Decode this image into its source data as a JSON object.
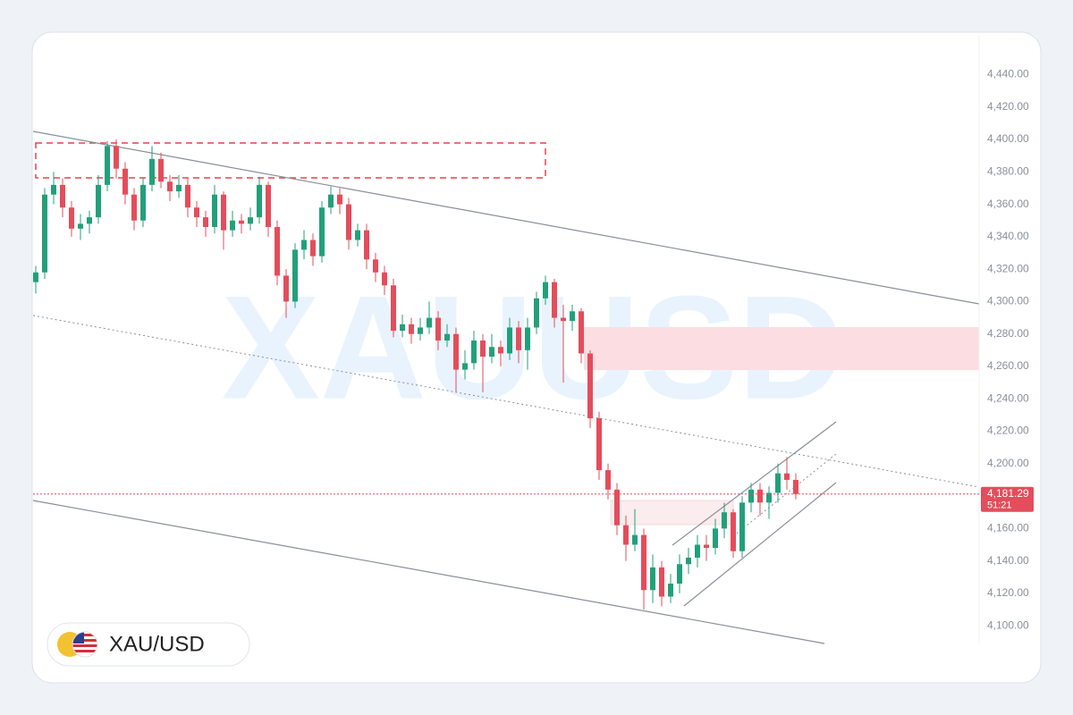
{
  "chart_data": {
    "type": "candlestick",
    "watermark": "XAUUSD",
    "symbol": "XAU/USD",
    "price_label": "4,181.29",
    "countdown": "51:21",
    "up_color": "#22a07a",
    "down_color": "#e44d5b",
    "grid": false,
    "ylim": [
      4067,
      4464
    ],
    "yticks": [
      {
        "value": 4100,
        "label": "4,100.00"
      },
      {
        "value": 4120,
        "label": "4,120.00"
      },
      {
        "value": 4140,
        "label": "4,140.00"
      },
      {
        "value": 4160,
        "label": "4,160.00"
      },
      {
        "value": 4180,
        "label": "4,180.00"
      },
      {
        "value": 4200,
        "label": "4,200.00"
      },
      {
        "value": 4220,
        "label": "4,220.00"
      },
      {
        "value": 4240,
        "label": "4,240.00"
      },
      {
        "value": 4260,
        "label": "4,260.00"
      },
      {
        "value": 4280,
        "label": "4,280.00"
      },
      {
        "value": 4300,
        "label": "4,300.00"
      },
      {
        "value": 4320,
        "label": "4,320.00"
      },
      {
        "value": 4340,
        "label": "4,340.00"
      },
      {
        "value": 4360,
        "label": "4,360.00"
      },
      {
        "value": 4380,
        "label": "4,380.00"
      },
      {
        "value": 4400,
        "label": "4,400.00"
      },
      {
        "value": 4420,
        "label": "4,420.00"
      },
      {
        "value": 4440,
        "label": "4,440.00"
      }
    ],
    "open": [
      4312,
      4318,
      4366,
      4372,
      4358,
      4345,
      4348,
      4352,
      4372,
      4396,
      4382,
      4366,
      4350,
      4372,
      4388,
      4374,
      4368,
      4372,
      4358,
      4352,
      4346,
      4366,
      4344,
      4350,
      4348,
      4352,
      4372,
      4346,
      4316,
      4300,
      4332,
      4338,
      4328,
      4358,
      4366,
      4360,
      4338,
      4344,
      4326,
      4318,
      4310,
      4282,
      4286,
      4280,
      4284,
      4290,
      4276,
      4280,
      4258,
      4262,
      4276,
      4266,
      4272,
      4268,
      4284,
      4270,
      4284,
      4302,
      4312,
      4290,
      4288,
      4294,
      4268,
      4228,
      4196,
      4184,
      4162,
      4150,
      4156,
      4122,
      4136,
      4118,
      4126,
      4138,
      4142,
      4150,
      4148,
      4160,
      4170,
      4146,
      4176,
      4184,
      4176,
      4182,
      4194,
      4190
    ],
    "high": [
      4322,
      4370,
      4380,
      4376,
      4362,
      4354,
      4356,
      4378,
      4399,
      4400,
      4386,
      4370,
      4376,
      4396,
      4392,
      4378,
      4378,
      4376,
      4362,
      4356,
      4372,
      4368,
      4356,
      4354,
      4358,
      4377,
      4374,
      4350,
      4320,
      4336,
      4344,
      4342,
      4362,
      4371,
      4370,
      4364,
      4348,
      4348,
      4330,
      4322,
      4314,
      4292,
      4290,
      4290,
      4300,
      4294,
      4286,
      4284,
      4270,
      4282,
      4280,
      4280,
      4276,
      4290,
      4288,
      4290,
      4306,
      4316,
      4314,
      4298,
      4298,
      4296,
      4270,
      4232,
      4200,
      4188,
      4168,
      4172,
      4160,
      4144,
      4140,
      4132,
      4144,
      4148,
      4156,
      4156,
      4166,
      4176,
      4172,
      4180,
      4188,
      4188,
      4186,
      4200,
      4204,
      4194
    ],
    "low": [
      4305,
      4314,
      4360,
      4352,
      4340,
      4338,
      4342,
      4348,
      4368,
      4376,
      4360,
      4344,
      4346,
      4368,
      4370,
      4362,
      4364,
      4352,
      4346,
      4340,
      4342,
      4332,
      4340,
      4342,
      4344,
      4348,
      4340,
      4310,
      4290,
      4296,
      4326,
      4322,
      4324,
      4354,
      4354,
      4332,
      4334,
      4320,
      4312,
      4304,
      4278,
      4278,
      4274,
      4276,
      4280,
      4270,
      4272,
      4244,
      4252,
      4258,
      4244,
      4262,
      4260,
      4264,
      4262,
      4258,
      4280,
      4298,
      4284,
      4250,
      4282,
      4262,
      4222,
      4190,
      4178,
      4156,
      4140,
      4146,
      4110,
      4114,
      4112,
      4114,
      4120,
      4132,
      4136,
      4140,
      4144,
      4154,
      4142,
      4142,
      4170,
      4168,
      4166,
      4176,
      4184,
      4178
    ],
    "close": [
      4318,
      4366,
      4372,
      4358,
      4345,
      4348,
      4352,
      4372,
      4396,
      4382,
      4366,
      4350,
      4372,
      4388,
      4374,
      4368,
      4372,
      4358,
      4352,
      4346,
      4366,
      4344,
      4350,
      4348,
      4352,
      4372,
      4346,
      4316,
      4300,
      4332,
      4338,
      4328,
      4358,
      4366,
      4360,
      4338,
      4344,
      4326,
      4318,
      4310,
      4282,
      4286,
      4280,
      4284,
      4290,
      4276,
      4280,
      4258,
      4262,
      4276,
      4266,
      4272,
      4268,
      4284,
      4270,
      4284,
      4302,
      4312,
      4290,
      4288,
      4294,
      4268,
      4228,
      4196,
      4184,
      4162,
      4150,
      4156,
      4122,
      4136,
      4118,
      4126,
      4138,
      4142,
      4150,
      4148,
      4160,
      4170,
      4146,
      4176,
      4184,
      4176,
      4182,
      4194,
      4190,
      4181.29
    ]
  }
}
